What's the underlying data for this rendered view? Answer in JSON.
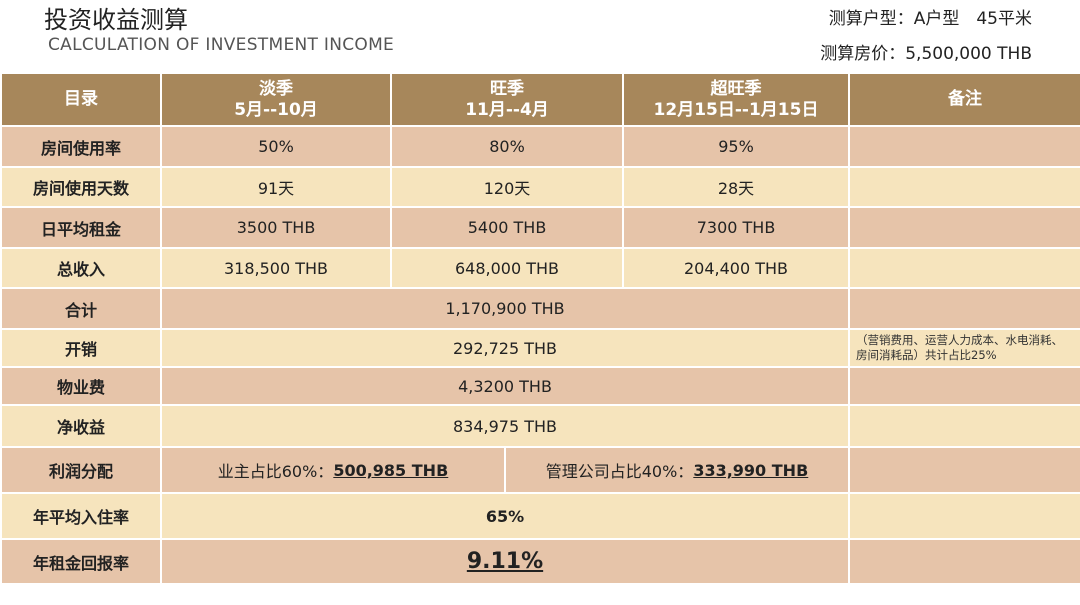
{
  "header": {
    "title": "投资收益测算",
    "subtitle": "CALCULATION OF INVESTMENT INCOME",
    "unit_type": "测算户型：A户型　45平米",
    "price": "测算房价：5,500,000 THB"
  },
  "table": {
    "columns": [
      {
        "name": "目录"
      },
      {
        "name": "淡季",
        "period": "5月--10月"
      },
      {
        "name": "旺季",
        "period": "11月--4月"
      },
      {
        "name": "超旺季",
        "period": "12月15日--1月15日"
      },
      {
        "name": "备注"
      }
    ],
    "rows": [
      {
        "label": "房间使用率",
        "values": [
          "50%",
          "80%",
          "95%"
        ]
      },
      {
        "label": "房间使用天数",
        "values": [
          "91天",
          "120天",
          "28天"
        ]
      },
      {
        "label": "日平均租金",
        "values": [
          "3500 THB",
          "5400 THB",
          "7300 THB"
        ]
      },
      {
        "label": "总收入",
        "values": [
          "318,500 THB",
          "648,000 THB",
          "204,400 THB"
        ]
      },
      {
        "label": "合计",
        "values": [
          "1,170,900 THB"
        ]
      },
      {
        "label": "开销",
        "values": [
          "292,725 THB"
        ],
        "note": "（营销费用、运营人力成本、水电消耗、房间消耗品）共计占比25%"
      },
      {
        "label": "物业费",
        "values": [
          "4,3200 THB"
        ]
      },
      {
        "label": "净收益",
        "values": [
          "834,975 THB"
        ]
      },
      {
        "label": "利润分配",
        "values": [
          {
            "text": "业主占比60%：",
            "amount": "500,985 THB"
          },
          {
            "text": "管理公司占比40%：",
            "amount": "333,990 THB"
          }
        ]
      },
      {
        "label": "年平均入住率",
        "values": [
          "65%"
        ]
      },
      {
        "label": "年租金回报率",
        "values": [
          "9.11%"
        ]
      }
    ]
  }
}
